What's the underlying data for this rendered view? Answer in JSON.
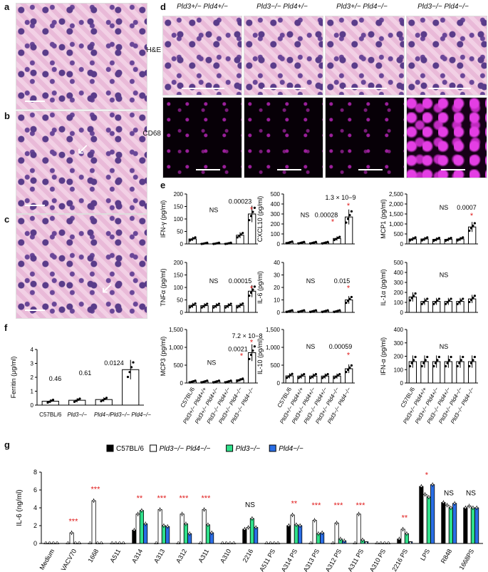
{
  "panel_labels": {
    "a": "a",
    "b": "b",
    "c": "c",
    "d": "d",
    "e": "e",
    "f": "f",
    "g": "g"
  },
  "panel_d": {
    "column_headers": [
      "Pld3+/− Pld4+/−",
      "Pld3−/− Pld4+/−",
      "Pld3+/− Pld4−/−",
      "Pld3−/− Pld4−/−"
    ],
    "row_labels": [
      "H&E",
      "CD68"
    ]
  },
  "genotype_labels": [
    "C57BL/6",
    "Pld3+/− Pld4+/+",
    "Pld3+/− Pld4+/−",
    "Pld3−/− Pld4+/−",
    "Pld3+/− Pld4−/−",
    "Pld3−/− Pld4−/−"
  ],
  "chart_data": [
    {
      "id": "e-ifng",
      "type": "bar",
      "ylabel": "IFN-γ (pg/ml)",
      "ylim": [
        0,
        200
      ],
      "yticks": [
        0,
        50,
        100,
        150,
        200
      ],
      "values": [
        20,
        2,
        2,
        2,
        35,
        120
      ],
      "annotations": [
        "NS",
        "0.00023",
        "*"
      ]
    },
    {
      "id": "e-cxcl10",
      "type": "bar",
      "ylabel": "CXCL10 (pg/ml)",
      "ylim": [
        0,
        500
      ],
      "yticks": [
        0,
        100,
        200,
        300,
        400,
        500
      ],
      "values": [
        15,
        12,
        12,
        12,
        55,
        270
      ],
      "annotations": [
        "NS",
        "0.00028",
        "1.3 × 10−9",
        "*",
        "*"
      ]
    },
    {
      "id": "e-mcp1",
      "type": "bar",
      "ylabel": "MCP1 (pg/ml)",
      "ylim": [
        0,
        2500
      ],
      "yticks": [
        0,
        500,
        1000,
        1500,
        2000,
        2500
      ],
      "yticklabels": [
        "0",
        "500",
        "1,000",
        "1,500",
        "2,000",
        "2,500"
      ],
      "values": [
        250,
        250,
        230,
        230,
        250,
        850
      ],
      "annotations": [
        "NS",
        "0.0007",
        "*"
      ]
    },
    {
      "id": "e-tnfa",
      "type": "bar",
      "ylabel": "TNFα (pg/ml)",
      "ylim": [
        0,
        200
      ],
      "yticks": [
        0,
        50,
        100,
        150,
        200
      ],
      "values": [
        28,
        27,
        27,
        27,
        28,
        85
      ],
      "annotations": [
        "NS",
        "0.00015",
        "*"
      ]
    },
    {
      "id": "e-il6",
      "type": "bar",
      "ylabel": "IL-6 (pg/ml)",
      "ylim": [
        0,
        40
      ],
      "yticks": [
        0,
        10,
        20,
        30,
        40
      ],
      "values": [
        1,
        1,
        1,
        1,
        1,
        10
      ],
      "annotations": [
        "NS",
        "0.015",
        "*"
      ]
    },
    {
      "id": "e-il1a",
      "type": "bar",
      "ylabel": "IL-1α (pg/ml)",
      "ylim": [
        0,
        500
      ],
      "yticks": [
        0,
        100,
        200,
        300,
        400,
        500
      ],
      "values": [
        155,
        110,
        110,
        110,
        110,
        135
      ],
      "annotations": [
        "NS"
      ]
    },
    {
      "id": "e-mcp3",
      "type": "bar",
      "ylabel": "MCP3 (pg/ml)",
      "ylim": [
        0,
        1500
      ],
      "yticks": [
        0,
        500,
        1000,
        1500
      ],
      "yticklabels": [
        "0",
        "500",
        "1,000",
        "1,500"
      ],
      "values": [
        40,
        40,
        40,
        40,
        90,
        850
      ],
      "annotations": [
        "NS",
        "0.0021",
        "7.2 × 10−8",
        "*",
        "*"
      ]
    },
    {
      "id": "e-il10",
      "type": "bar",
      "ylabel": "IL-10 (pg/ml)",
      "ylim": [
        0,
        1500
      ],
      "yticks": [
        0,
        500,
        1000,
        1500
      ],
      "yticklabels": [
        "0",
        "500",
        "1,000",
        "1,500"
      ],
      "values": [
        200,
        195,
        195,
        195,
        195,
        400
      ],
      "annotations": [
        "NS",
        "0.00059",
        "*"
      ]
    },
    {
      "id": "e-ifna",
      "type": "bar",
      "ylabel": "IFN-α (pg/ml)",
      "ylim": [
        0,
        400
      ],
      "yticks": [
        0,
        100,
        200,
        300,
        400
      ],
      "values": [
        160,
        160,
        160,
        160,
        160,
        160
      ],
      "annotations": [
        "NS"
      ]
    },
    {
      "id": "f-ferritin",
      "type": "bar",
      "ylabel": "Ferritin (μg/ml)",
      "ylim": [
        0,
        4
      ],
      "yticks": [
        0,
        1,
        2,
        3,
        4
      ],
      "categories": [
        "C57BL/6",
        "Pld3−/−",
        "Pld4−/−",
        "Pld3−/− Pld4−/−"
      ],
      "values": [
        0.28,
        0.35,
        0.4,
        2.55
      ],
      "annotations": [
        "0.46",
        "0.61",
        "0.0124"
      ]
    },
    {
      "id": "g-il6",
      "type": "bar",
      "ylabel": "IL-6 (ng/ml)",
      "ylim": [
        0,
        8
      ],
      "yticks": [
        0,
        2,
        4,
        6,
        8
      ],
      "categories": [
        "Medium",
        "VACV70",
        "1668",
        "A511",
        "A314",
        "A313",
        "A312",
        "A311",
        "A310",
        "2216",
        "A511 PS",
        "A314 PS",
        "A313 PS",
        "A312 PS",
        "A311 PS",
        "A310 PS",
        "2216 PS",
        "LPS",
        "R848",
        "1668PS"
      ],
      "series": [
        {
          "name": "C57BL/6",
          "color": "#000000",
          "values": [
            0,
            0,
            0,
            0,
            1.5,
            0,
            0,
            0,
            0,
            1.6,
            0,
            2.0,
            0,
            0,
            0,
            0,
            0.5,
            6.4,
            4.6,
            4.0
          ]
        },
        {
          "name": "Pld3−/− Pld4−/−",
          "color": "#ffffff",
          "values": [
            0,
            1.2,
            4.8,
            0,
            3.3,
            3.8,
            3.3,
            3.8,
            0,
            1.8,
            0,
            3.2,
            2.6,
            2.3,
            3.3,
            0,
            1.6,
            5.5,
            4.3,
            4.2
          ]
        },
        {
          "name": "Pld3−/−",
          "color": "#2fe08a",
          "values": [
            0,
            0,
            0,
            0,
            3.7,
            2.0,
            2.2,
            2.1,
            0,
            2.8,
            0,
            2.1,
            1.1,
            0.5,
            0.4,
            0,
            1.1,
            5.2,
            4.0,
            4.0
          ]
        },
        {
          "name": "Pld4−/−",
          "color": "#2a6ee6",
          "values": [
            0,
            0,
            0,
            0,
            2.2,
            1.9,
            1.1,
            1.2,
            0,
            1.8,
            0,
            2.0,
            1.2,
            0.3,
            0.2,
            0,
            0.2,
            6.6,
            4.5,
            4.0
          ]
        }
      ],
      "annotations": [
        "***",
        "***",
        "**",
        "***",
        "***",
        "***",
        "NS",
        "**",
        "***",
        "***",
        "***",
        "**",
        "*",
        "NS",
        "NS"
      ]
    }
  ]
}
